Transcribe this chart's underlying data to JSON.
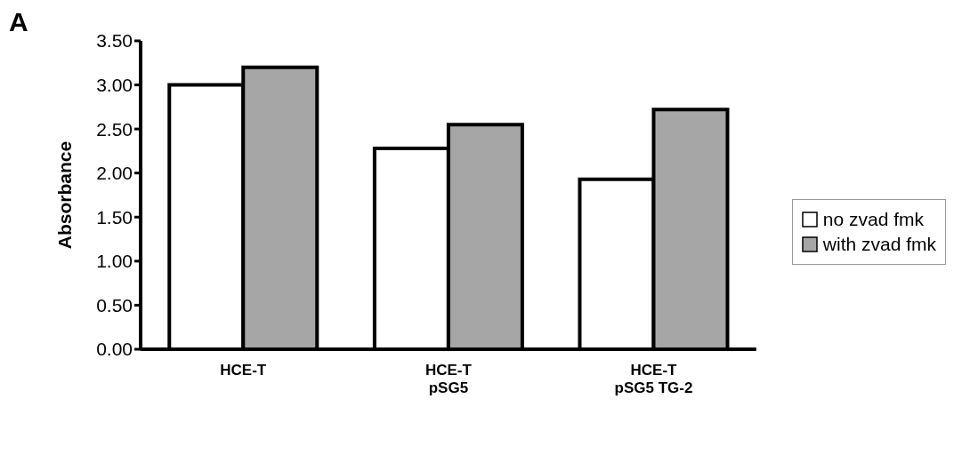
{
  "chart_data": {
    "type": "bar",
    "ylabel": "Absorbance",
    "categories": [
      "HCE-T",
      "HCE-T\npSG5",
      "HCE-T\npSG5 TG-2"
    ],
    "series": [
      {
        "name": "no zvad fmk",
        "color": "#ffffff",
        "values": [
          3.0,
          2.28,
          1.93
        ]
      },
      {
        "name": "with zvad fmk",
        "color": "#a6a6a6",
        "values": [
          3.2,
          2.55,
          2.72
        ]
      }
    ],
    "ylim": [
      0,
      3.5
    ],
    "yticks": [
      {
        "value": 0,
        "label": "0.00"
      },
      {
        "value": 0.5,
        "label": "0.50"
      },
      {
        "value": 1,
        "label": "1.00"
      },
      {
        "value": 1.5,
        "label": "1.50"
      },
      {
        "value": 2,
        "label": "2.00"
      },
      {
        "value": 2.5,
        "label": "2.50"
      },
      {
        "value": 3,
        "label": "3.00"
      },
      {
        "value": 3.5,
        "label": "3.50"
      }
    ],
    "grid": false,
    "legend": "right",
    "annotations": [
      "A"
    ]
  }
}
